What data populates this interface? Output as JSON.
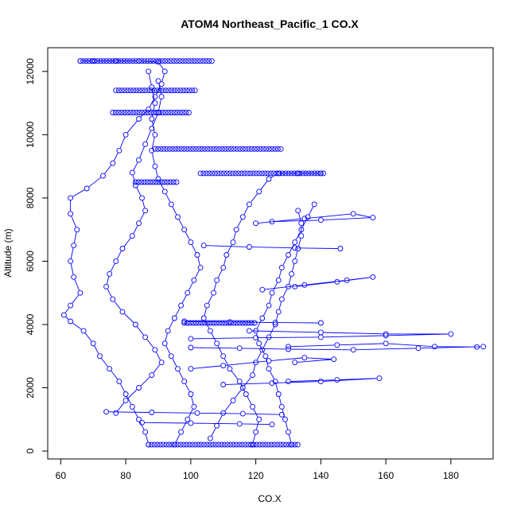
{
  "chart_data": {
    "type": "scatter",
    "title": "ATOM4 Northeast_Pacific_1 CO.X",
    "xlabel": "CO.X",
    "ylabel": "Altitude (m)",
    "xlim": [
      56,
      193
    ],
    "ylim": [
      -250,
      12750
    ],
    "x_ticks": [
      60,
      80,
      100,
      120,
      140,
      160,
      180
    ],
    "y_ticks": [
      0,
      2000,
      4000,
      6000,
      8000,
      10000,
      12000
    ],
    "grid": false,
    "legend": "none",
    "point_color": "#0000ff",
    "line_color": "#0000ff",
    "series": [
      {
        "values": [
          [
            87,
            200
          ],
          [
            86,
            600
          ],
          [
            84,
            1000
          ],
          [
            82,
            1400
          ],
          [
            80,
            1800
          ],
          [
            78,
            2200
          ],
          [
            75,
            2600
          ],
          [
            72,
            3000
          ],
          [
            70,
            3400
          ],
          [
            67,
            3800
          ],
          [
            63,
            4100
          ],
          [
            61,
            4300
          ],
          [
            63,
            4600
          ],
          [
            66,
            5000
          ],
          [
            64,
            5500
          ],
          [
            63,
            6000
          ],
          [
            64,
            6500
          ],
          [
            65,
            7000
          ],
          [
            63,
            7500
          ],
          [
            63,
            8000
          ],
          [
            68,
            8300
          ],
          [
            73,
            8700
          ],
          [
            76,
            9100
          ],
          [
            78,
            9500
          ],
          [
            80,
            10000
          ],
          [
            84,
            10500
          ],
          [
            87,
            10800
          ],
          [
            89,
            11200
          ],
          [
            91,
            11600
          ],
          [
            92,
            12000
          ],
          [
            90,
            12300
          ],
          [
            84,
            12330
          ],
          [
            77,
            12330
          ],
          [
            70,
            12330
          ],
          [
            66,
            12330
          ]
        ]
      },
      {
        "values": [
          [
            119,
            200
          ],
          [
            120,
            600
          ],
          [
            121,
            1000
          ],
          [
            119,
            1400
          ],
          [
            117,
            1800
          ],
          [
            115,
            2200
          ],
          [
            112,
            2600
          ],
          [
            110,
            3000
          ],
          [
            108,
            3400
          ],
          [
            106,
            3800
          ],
          [
            104,
            4200
          ],
          [
            105,
            4600
          ],
          [
            107,
            5000
          ],
          [
            108,
            5400
          ],
          [
            110,
            5800
          ],
          [
            111,
            6200
          ],
          [
            113,
            6600
          ],
          [
            114,
            7000
          ],
          [
            116,
            7400
          ],
          [
            118,
            7800
          ],
          [
            121,
            8200
          ],
          [
            124,
            8600
          ],
          [
            127,
            8780
          ],
          [
            133,
            8780
          ],
          [
            140,
            8780
          ]
        ]
      },
      {
        "values": [
          [
            131,
            200
          ],
          [
            130,
            600
          ],
          [
            129,
            1000
          ],
          [
            128,
            1400
          ],
          [
            127,
            1800
          ],
          [
            126,
            2200
          ],
          [
            124,
            2600
          ],
          [
            123,
            3000
          ],
          [
            121,
            3400
          ],
          [
            120,
            3800
          ],
          [
            122,
            4200
          ],
          [
            124,
            4600
          ],
          [
            125,
            5000
          ],
          [
            127,
            5400
          ],
          [
            128,
            5800
          ],
          [
            130,
            6200
          ],
          [
            132,
            6600
          ],
          [
            134,
            7000
          ],
          [
            136,
            7400
          ],
          [
            138,
            7800
          ]
        ]
      },
      {
        "values": [
          [
            95,
            200
          ],
          [
            97,
            600
          ],
          [
            99,
            1000
          ],
          [
            101,
            1400
          ],
          [
            100,
            1800
          ],
          [
            98,
            2200
          ],
          [
            96,
            2600
          ],
          [
            94,
            3000
          ],
          [
            92,
            3400
          ],
          [
            93,
            3800
          ],
          [
            95,
            4200
          ],
          [
            97,
            4600
          ],
          [
            99,
            5000
          ],
          [
            101,
            5400
          ],
          [
            103,
            5800
          ],
          [
            102,
            6200
          ],
          [
            100,
            6600
          ],
          [
            98,
            7000
          ],
          [
            96,
            7400
          ],
          [
            94,
            7800
          ],
          [
            92,
            8200
          ],
          [
            90,
            8600
          ],
          [
            89,
            9000
          ],
          [
            88,
            9500
          ],
          [
            89,
            10000
          ],
          [
            88,
            10500
          ],
          [
            89,
            11000
          ],
          [
            88,
            11500
          ],
          [
            87,
            12000
          ]
        ]
      },
      {
        "values": [
          [
            77,
            1200
          ],
          [
            80,
            1600
          ],
          [
            84,
            2000
          ],
          [
            88,
            2400
          ],
          [
            91,
            2800
          ],
          [
            89,
            3200
          ],
          [
            86,
            3600
          ],
          [
            83,
            4000
          ],
          [
            79,
            4400
          ],
          [
            76,
            4800
          ],
          [
            74,
            5200
          ],
          [
            75,
            5600
          ],
          [
            77,
            6000
          ],
          [
            79,
            6400
          ],
          [
            82,
            6800
          ],
          [
            84,
            7200
          ],
          [
            86,
            7600
          ],
          [
            85,
            8000
          ],
          [
            83,
            8400
          ],
          [
            82,
            8800
          ],
          [
            84,
            9200
          ],
          [
            86,
            9700
          ],
          [
            88,
            10200
          ],
          [
            90,
            10700
          ],
          [
            91,
            11200
          ],
          [
            90,
            11700
          ]
        ]
      },
      {
        "values": [
          [
            106,
            400
          ],
          [
            108,
            800
          ],
          [
            110,
            1200
          ],
          [
            113,
            1600
          ],
          [
            116,
            2000
          ],
          [
            119,
            2400
          ],
          [
            120,
            2800
          ],
          [
            122,
            3200
          ],
          [
            124,
            3600
          ],
          [
            126,
            4000
          ],
          [
            127,
            4400
          ],
          [
            128,
            4800
          ],
          [
            130,
            5200
          ],
          [
            131,
            5600
          ],
          [
            132,
            6000
          ],
          [
            133,
            6400
          ],
          [
            134,
            6800
          ],
          [
            134,
            7200
          ],
          [
            133,
            7600
          ]
        ]
      },
      {
        "values": [
          [
            130,
            3300
          ],
          [
            145,
            3350
          ],
          [
            160,
            3400
          ],
          [
            175,
            3300
          ],
          [
            188,
            3290
          ],
          [
            190,
            3300
          ],
          [
            170,
            3250
          ],
          [
            150,
            3200
          ],
          [
            130,
            3220
          ],
          [
            115,
            3250
          ],
          [
            100,
            3270
          ]
        ]
      },
      {
        "values": [
          [
            118,
            3800
          ],
          [
            140,
            3750
          ],
          [
            160,
            3700
          ],
          [
            180,
            3700
          ],
          [
            160,
            3650
          ],
          [
            140,
            3600
          ],
          [
            120,
            3580
          ],
          [
            100,
            3550
          ]
        ]
      },
      {
        "values": [
          [
            122,
            5100
          ],
          [
            135,
            5250
          ],
          [
            148,
            5400
          ],
          [
            156,
            5500
          ],
          [
            145,
            5350
          ],
          [
            132,
            5200
          ]
        ]
      },
      {
        "values": [
          [
            120,
            7200
          ],
          [
            135,
            7350
          ],
          [
            150,
            7500
          ],
          [
            156,
            7380
          ],
          [
            140,
            7300
          ],
          [
            125,
            7250
          ]
        ]
      },
      {
        "values": [
          [
            100,
            2600
          ],
          [
            110,
            2700
          ],
          [
            124,
            2850
          ],
          [
            135,
            2950
          ],
          [
            144,
            2900
          ],
          [
            132,
            2800
          ]
        ]
      },
      {
        "values": [
          [
            110,
            2100
          ],
          [
            125,
            2150
          ],
          [
            140,
            2200
          ],
          [
            158,
            2300
          ],
          [
            145,
            2250
          ],
          [
            130,
            2200
          ]
        ]
      },
      {
        "values": [
          [
            74,
            1240
          ],
          [
            88,
            1220
          ],
          [
            102,
            1200
          ],
          [
            116,
            1180
          ],
          [
            128,
            1150
          ]
        ]
      },
      {
        "values": [
          [
            85,
            900
          ],
          [
            100,
            880
          ],
          [
            115,
            860
          ],
          [
            125,
            840
          ]
        ]
      },
      {
        "values": [
          [
            104,
            6500
          ],
          [
            118,
            6450
          ],
          [
            132,
            6420
          ],
          [
            146,
            6400
          ]
        ]
      },
      {
        "values": [
          [
            98,
            4100
          ],
          [
            112,
            4080
          ],
          [
            126,
            4060
          ],
          [
            140,
            4050
          ]
        ]
      }
    ],
    "horizontal_bands": [
      {
        "y": 12330,
        "x": [
          66,
          107
        ]
      },
      {
        "y": 11400,
        "x": [
          77,
          102
        ]
      },
      {
        "y": 10700,
        "x": [
          76,
          100
        ]
      },
      {
        "y": 9550,
        "x": [
          89,
          128
        ]
      },
      {
        "y": 8780,
        "x": [
          103,
          141
        ]
      },
      {
        "y": 8500,
        "x": [
          83,
          96
        ]
      },
      {
        "y": 4050,
        "x": [
          98,
          120
        ]
      },
      {
        "y": 200,
        "x": [
          87,
          133
        ]
      }
    ]
  }
}
